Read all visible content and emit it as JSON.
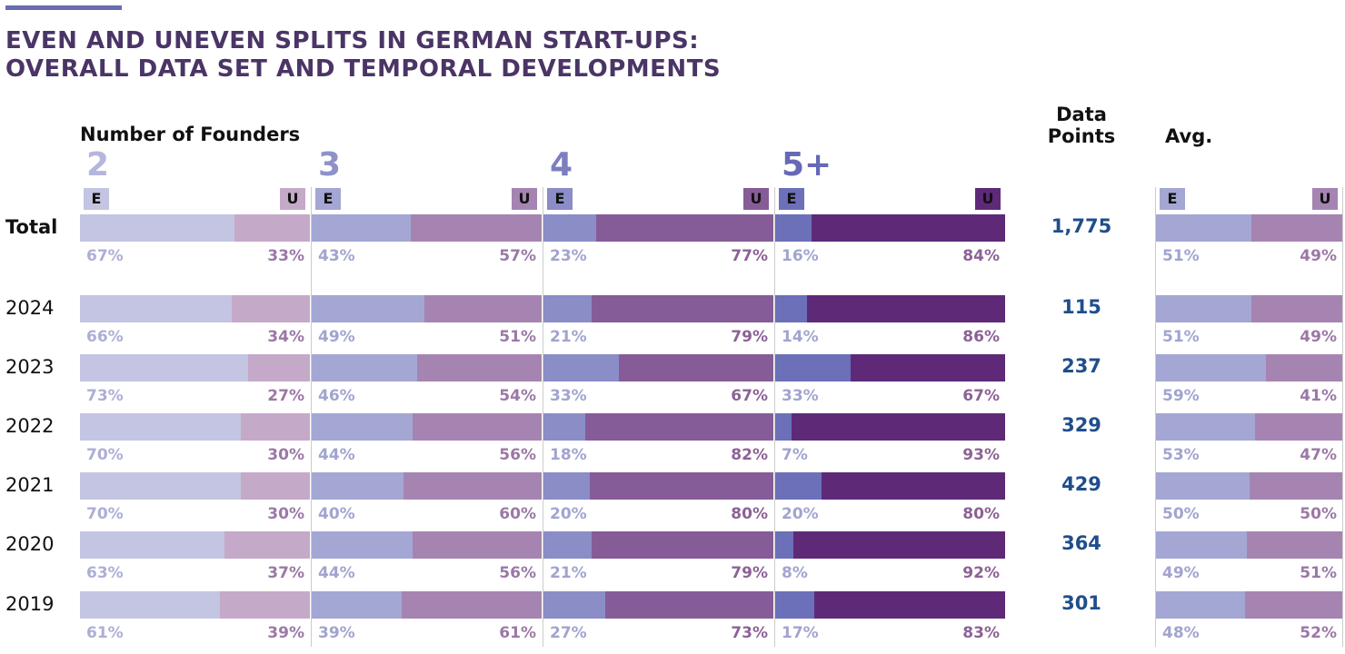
{
  "title_lines": [
    "EVEN AND UNEVEN SPLITS IN GERMAN START-UPS:",
    "OVERALL DATA SET AND TEMPORAL DEVELOPMENTS"
  ],
  "header": {
    "founders_label": "Number of Founders",
    "data_points_lines": [
      "Data",
      "Points"
    ],
    "avg_label": "Avg."
  },
  "legend": {
    "even_badge": "E",
    "uneven_badge": "U"
  },
  "colors": {
    "accent": "#6a6bb0",
    "title": "#4a3566",
    "data_points": "#1f4e8c",
    "groups": {
      "2": {
        "even": "#c3c5e2",
        "uneven": "#c5a9c9",
        "even_text": "#adaed6",
        "uneven_text": "#9b78a6",
        "number": "#b4b6dc"
      },
      "3": {
        "even": "#a4a7d3",
        "uneven": "#a684b2",
        "even_text": "#a1a4cf",
        "uneven_text": "#9b78a6",
        "number": "#8f92c8"
      },
      "4": {
        "even": "#8a8dc6",
        "uneven": "#865c98",
        "even_text": "#a1a4cf",
        "uneven_text": "#8c6296",
        "number": "#7b7fbe"
      },
      "5+": {
        "even": "#6b70b9",
        "uneven": "#5e2a78",
        "even_text": "#a1a4cf",
        "uneven_text": "#8c6296",
        "number": "#6669b6"
      },
      "avg": {
        "even": "#a4a7d3",
        "uneven": "#a684b2",
        "even_text": "#a1a4cf",
        "uneven_text": "#9b78a6"
      }
    }
  },
  "chart_data": {
    "type": "bar",
    "orientation": "horizontal",
    "stacked": true,
    "normalized_to_percent": true,
    "title": "EVEN AND UNEVEN SPLITS IN GERMAN START-UPS: OVERALL DATA SET AND TEMPORAL DEVELOPMENTS",
    "groups": [
      "2",
      "3",
      "4",
      "5+"
    ],
    "group_axis_label": "Number of Founders",
    "series_names": [
      "E",
      "U"
    ],
    "summary_group": "Avg.",
    "data_points_label": "Data Points",
    "rows": [
      {
        "label": "Total",
        "data_points": "1,775",
        "values": {
          "2": [
            67,
            33
          ],
          "3": [
            43,
            57
          ],
          "4": [
            23,
            77
          ],
          "5+": [
            16,
            84
          ]
        },
        "avg": [
          51,
          49
        ]
      },
      {
        "label": "2024",
        "data_points": "115",
        "values": {
          "2": [
            66,
            34
          ],
          "3": [
            49,
            51
          ],
          "4": [
            21,
            79
          ],
          "5+": [
            14,
            86
          ]
        },
        "avg": [
          51,
          49
        ]
      },
      {
        "label": "2023",
        "data_points": "237",
        "values": {
          "2": [
            73,
            27
          ],
          "3": [
            46,
            54
          ],
          "4": [
            33,
            67
          ],
          "5+": [
            33,
            67
          ]
        },
        "avg": [
          59,
          41
        ]
      },
      {
        "label": "2022",
        "data_points": "329",
        "values": {
          "2": [
            70,
            30
          ],
          "3": [
            44,
            56
          ],
          "4": [
            18,
            82
          ],
          "5+": [
            7,
            93
          ]
        },
        "avg": [
          53,
          47
        ]
      },
      {
        "label": "2021",
        "data_points": "429",
        "values": {
          "2": [
            70,
            30
          ],
          "3": [
            40,
            60
          ],
          "4": [
            20,
            80
          ],
          "5+": [
            20,
            80
          ]
        },
        "avg": [
          50,
          50
        ]
      },
      {
        "label": "2020",
        "data_points": "364",
        "values": {
          "2": [
            63,
            37
          ],
          "3": [
            44,
            56
          ],
          "4": [
            21,
            79
          ],
          "5+": [
            8,
            92
          ]
        },
        "avg": [
          49,
          51
        ]
      },
      {
        "label": "2019",
        "data_points": "301",
        "values": {
          "2": [
            61,
            39
          ],
          "3": [
            39,
            61
          ],
          "4": [
            27,
            73
          ],
          "5+": [
            17,
            83
          ]
        },
        "avg": [
          48,
          52
        ]
      }
    ]
  }
}
